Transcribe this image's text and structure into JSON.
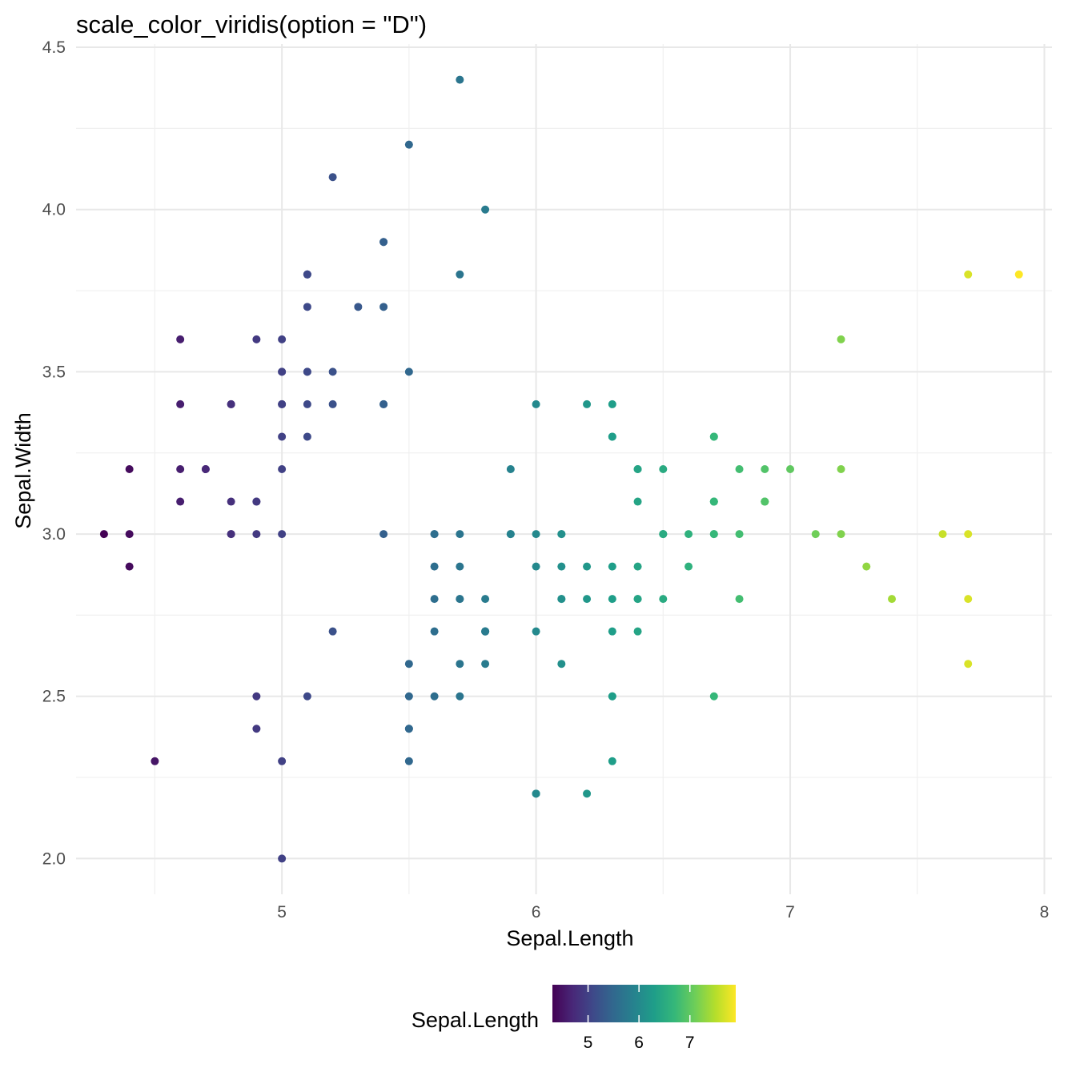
{
  "chart_data": {
    "type": "scatter",
    "title": "scale_color_viridis(option = \"D\")",
    "xlabel": "Sepal.Length",
    "ylabel": "Sepal.Width",
    "xlim": [
      4.19,
      8.03
    ],
    "ylim": [
      1.89,
      4.51
    ],
    "x_ticks": [
      5,
      6,
      7,
      8
    ],
    "x_tick_labels": [
      "5",
      "6",
      "7",
      "8"
    ],
    "y_ticks": [
      2.0,
      2.5,
      3.0,
      3.5,
      4.0,
      4.5
    ],
    "y_tick_labels": [
      "2.0",
      "2.5",
      "3.0",
      "3.5",
      "4.0",
      "4.5"
    ],
    "grid": true,
    "color_mapping": "x",
    "color_scale": {
      "name": "viridis",
      "option": "D",
      "domain": [
        4.3,
        7.9
      ],
      "stops": [
        "#440154",
        "#482878",
        "#3e4989",
        "#31688e",
        "#26828e",
        "#1f9e89",
        "#35b779",
        "#6ece58",
        "#b5de2b",
        "#fde725"
      ]
    },
    "legend": {
      "title": "Sepal.Length",
      "position": "bottom",
      "ticks": [
        5,
        6,
        7
      ],
      "tick_labels": [
        "5",
        "6",
        "7"
      ]
    },
    "points": [
      [
        5.1,
        3.5
      ],
      [
        4.9,
        3.0
      ],
      [
        4.7,
        3.2
      ],
      [
        4.6,
        3.1
      ],
      [
        5.0,
        3.6
      ],
      [
        5.4,
        3.9
      ],
      [
        4.6,
        3.4
      ],
      [
        5.0,
        3.4
      ],
      [
        4.4,
        2.9
      ],
      [
        4.9,
        3.1
      ],
      [
        5.4,
        3.7
      ],
      [
        4.8,
        3.4
      ],
      [
        4.8,
        3.0
      ],
      [
        4.3,
        3.0
      ],
      [
        5.8,
        4.0
      ],
      [
        5.7,
        4.4
      ],
      [
        5.4,
        3.9
      ],
      [
        5.1,
        3.5
      ],
      [
        5.7,
        3.8
      ],
      [
        5.1,
        3.8
      ],
      [
        5.4,
        3.4
      ],
      [
        5.1,
        3.7
      ],
      [
        4.6,
        3.6
      ],
      [
        5.1,
        3.3
      ],
      [
        4.8,
        3.4
      ],
      [
        5.0,
        3.0
      ],
      [
        5.0,
        3.4
      ],
      [
        5.2,
        3.5
      ],
      [
        5.2,
        3.4
      ],
      [
        4.7,
        3.2
      ],
      [
        4.8,
        3.1
      ],
      [
        5.4,
        3.4
      ],
      [
        5.2,
        4.1
      ],
      [
        5.5,
        4.2
      ],
      [
        4.9,
        3.1
      ],
      [
        5.0,
        3.2
      ],
      [
        5.5,
        3.5
      ],
      [
        4.9,
        3.6
      ],
      [
        4.4,
        3.0
      ],
      [
        5.1,
        3.4
      ],
      [
        5.0,
        3.5
      ],
      [
        4.5,
        2.3
      ],
      [
        4.4,
        3.2
      ],
      [
        5.0,
        3.5
      ],
      [
        5.1,
        3.8
      ],
      [
        4.8,
        3.0
      ],
      [
        5.1,
        3.8
      ],
      [
        4.6,
        3.2
      ],
      [
        5.3,
        3.7
      ],
      [
        5.0,
        3.3
      ],
      [
        7.0,
        3.2
      ],
      [
        6.4,
        3.2
      ],
      [
        6.9,
        3.1
      ],
      [
        5.5,
        2.3
      ],
      [
        6.5,
        2.8
      ],
      [
        5.7,
        2.8
      ],
      [
        6.3,
        3.3
      ],
      [
        4.9,
        2.4
      ],
      [
        6.6,
        2.9
      ],
      [
        5.2,
        2.7
      ],
      [
        5.0,
        2.0
      ],
      [
        5.9,
        3.0
      ],
      [
        6.0,
        2.2
      ],
      [
        6.1,
        2.9
      ],
      [
        5.6,
        2.9
      ],
      [
        6.7,
        3.1
      ],
      [
        5.6,
        3.0
      ],
      [
        5.8,
        2.7
      ],
      [
        6.2,
        2.2
      ],
      [
        5.6,
        2.5
      ],
      [
        5.9,
        3.2
      ],
      [
        6.1,
        2.8
      ],
      [
        6.3,
        2.5
      ],
      [
        6.1,
        2.8
      ],
      [
        6.4,
        2.9
      ],
      [
        6.6,
        3.0
      ],
      [
        6.8,
        2.8
      ],
      [
        6.7,
        3.0
      ],
      [
        6.0,
        2.9
      ],
      [
        5.7,
        2.6
      ],
      [
        5.5,
        2.4
      ],
      [
        5.5,
        2.4
      ],
      [
        5.8,
        2.7
      ],
      [
        6.0,
        2.7
      ],
      [
        5.4,
        3.0
      ],
      [
        6.0,
        3.4
      ],
      [
        6.7,
        3.1
      ],
      [
        6.3,
        2.3
      ],
      [
        5.6,
        3.0
      ],
      [
        5.5,
        2.5
      ],
      [
        5.5,
        2.6
      ],
      [
        6.1,
        3.0
      ],
      [
        5.8,
        2.6
      ],
      [
        5.0,
        2.3
      ],
      [
        5.6,
        2.7
      ],
      [
        5.7,
        3.0
      ],
      [
        5.7,
        2.9
      ],
      [
        6.2,
        2.9
      ],
      [
        5.1,
        2.5
      ],
      [
        5.7,
        2.8
      ],
      [
        6.3,
        3.3
      ],
      [
        5.8,
        2.7
      ],
      [
        7.1,
        3.0
      ],
      [
        6.3,
        2.9
      ],
      [
        6.5,
        3.0
      ],
      [
        7.6,
        3.0
      ],
      [
        4.9,
        2.5
      ],
      [
        7.3,
        2.9
      ],
      [
        6.7,
        2.5
      ],
      [
        7.2,
        3.6
      ],
      [
        6.5,
        3.2
      ],
      [
        6.4,
        2.7
      ],
      [
        6.8,
        3.0
      ],
      [
        5.7,
        2.5
      ],
      [
        5.8,
        2.8
      ],
      [
        6.4,
        3.2
      ],
      [
        6.5,
        3.0
      ],
      [
        7.7,
        3.8
      ],
      [
        7.7,
        2.6
      ],
      [
        6.0,
        2.2
      ],
      [
        6.9,
        3.2
      ],
      [
        5.6,
        2.8
      ],
      [
        7.7,
        2.8
      ],
      [
        6.3,
        2.7
      ],
      [
        6.7,
        3.3
      ],
      [
        7.2,
        3.2
      ],
      [
        6.2,
        2.8
      ],
      [
        6.1,
        3.0
      ],
      [
        6.4,
        2.8
      ],
      [
        7.2,
        3.0
      ],
      [
        7.4,
        2.8
      ],
      [
        7.9,
        3.8
      ],
      [
        6.4,
        2.8
      ],
      [
        6.3,
        2.8
      ],
      [
        6.1,
        2.6
      ],
      [
        7.7,
        3.0
      ],
      [
        6.3,
        3.4
      ],
      [
        6.4,
        3.1
      ],
      [
        6.0,
        3.0
      ],
      [
        6.9,
        3.1
      ],
      [
        6.7,
        3.1
      ],
      [
        6.9,
        3.1
      ],
      [
        5.8,
        2.7
      ],
      [
        6.8,
        3.2
      ],
      [
        6.7,
        3.3
      ],
      [
        6.7,
        3.0
      ],
      [
        6.3,
        2.5
      ],
      [
        6.5,
        3.0
      ],
      [
        6.2,
        3.4
      ],
      [
        5.9,
        3.0
      ]
    ]
  }
}
